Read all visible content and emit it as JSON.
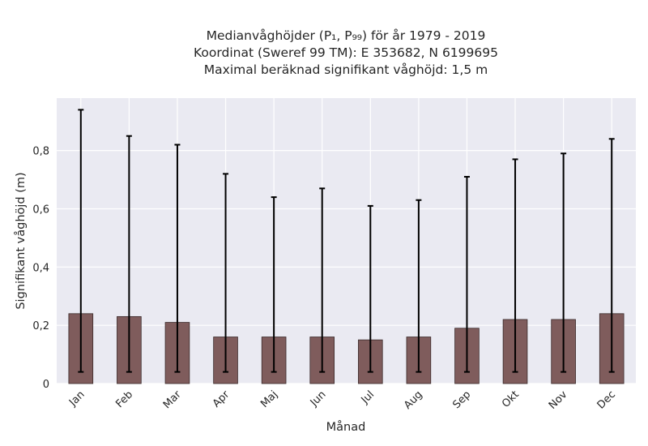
{
  "chart_data": {
    "type": "bar",
    "title_lines": [
      "Medianvåghöjder (P₁, P₉₉) för år 1979 - 2019",
      "Koordinat (Sweref 99 TM): E 353682, N 6199695",
      "Maximal beräknad signifikant våghöjd: 1,5 m"
    ],
    "xlabel": "Månad",
    "ylabel": "Signifikant våghöjd (m)",
    "ylim": [
      0,
      0.98
    ],
    "yticks": [
      0,
      0.2,
      0.4,
      0.6,
      0.8
    ],
    "ytick_labels": [
      "0",
      "0,2",
      "0,4",
      "0,6",
      "0,8"
    ],
    "grid": true,
    "categories": [
      "Jan",
      "Feb",
      "Mar",
      "Apr",
      "Maj",
      "Jun",
      "Jul",
      "Aug",
      "Sep",
      "Okt",
      "Nov",
      "Dec"
    ],
    "values": [
      0.24,
      0.23,
      0.21,
      0.16,
      0.16,
      0.16,
      0.15,
      0.16,
      0.19,
      0.22,
      0.22,
      0.24
    ],
    "p1": [
      0.04,
      0.04,
      0.04,
      0.04,
      0.04,
      0.04,
      0.04,
      0.04,
      0.04,
      0.04,
      0.04,
      0.04
    ],
    "p99": [
      0.94,
      0.85,
      0.82,
      0.72,
      0.64,
      0.67,
      0.61,
      0.63,
      0.71,
      0.77,
      0.79,
      0.84
    ],
    "colors": {
      "bar": "#7f5c5c",
      "bar_edge": "#3a2a2a",
      "errorbar": "#000000",
      "plot_bg": "#eaeaf2",
      "grid": "#ffffff"
    }
  }
}
